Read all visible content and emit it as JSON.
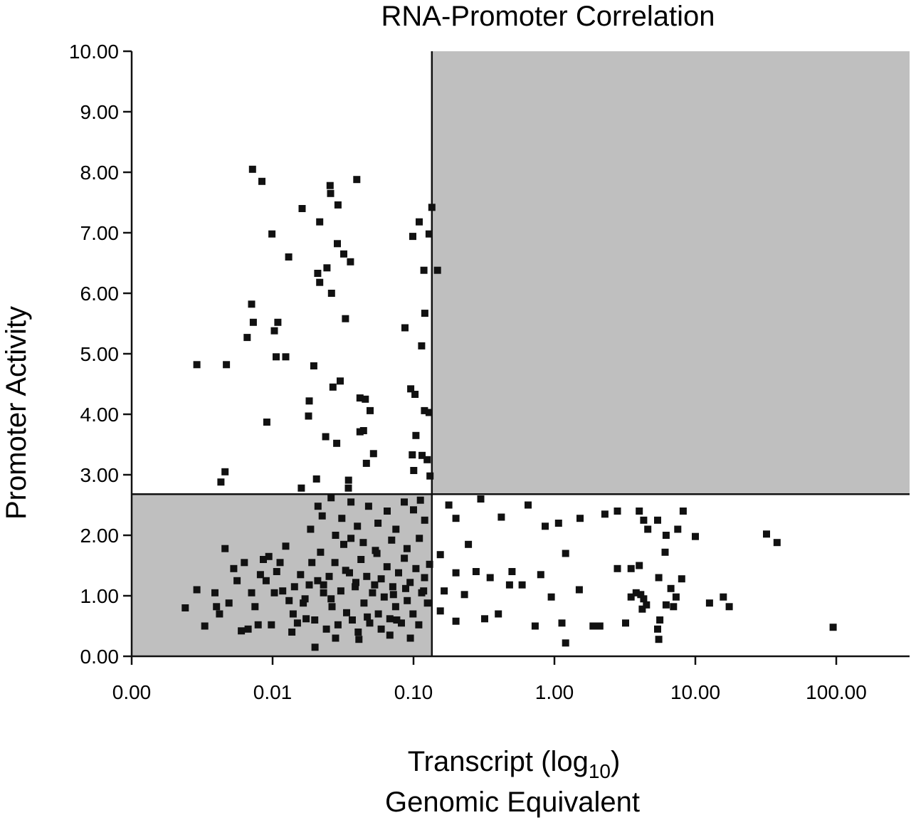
{
  "chart_data": {
    "type": "scatter",
    "title": "RNA-Promoter  Correlation",
    "xlabel": {
      "main": "Transcript (log",
      "subscript": "10",
      "close": ")",
      "line2": "Genomic Equivalent"
    },
    "ylabel": "Promoter Activity",
    "x_scale": "log10",
    "xlim": [
      0.001,
      300
    ],
    "ylim": [
      0,
      10
    ],
    "x_ticks": [
      {
        "value": 0.001,
        "label": "0.00"
      },
      {
        "value": 0.01,
        "label": "0.01"
      },
      {
        "value": 0.1,
        "label": "0.10"
      },
      {
        "value": 1,
        "label": "1.00"
      },
      {
        "value": 10,
        "label": "10.00"
      },
      {
        "value": 100,
        "label": "100.00"
      }
    ],
    "y_ticks": [
      {
        "value": 0,
        "label": "0.00"
      },
      {
        "value": 1,
        "label": "1.00"
      },
      {
        "value": 2,
        "label": "2.00"
      },
      {
        "value": 3,
        "label": "3.00"
      },
      {
        "value": 4,
        "label": "4.00"
      },
      {
        "value": 5,
        "label": "5.00"
      },
      {
        "value": 6,
        "label": "6.00"
      },
      {
        "value": 7,
        "label": "7.00"
      },
      {
        "value": 8,
        "label": "8.00"
      },
      {
        "value": 9,
        "label": "9.00"
      },
      {
        "value": 10,
        "label": "10.00"
      }
    ],
    "threshold_x": 0.135,
    "threshold_y": 2.68,
    "shaded_quadrants": [
      "low-x-low-y",
      "high-x-high-y"
    ],
    "grid": false,
    "colors": {
      "points": "#111111",
      "shade": "#bfbfbf",
      "axis": "#111111"
    },
    "points": [
      [
        0.0072,
        8.05
      ],
      [
        0.0084,
        7.85
      ],
      [
        0.0099,
        6.98
      ],
      [
        0.013,
        6.6
      ],
      [
        0.0071,
        5.82
      ],
      [
        0.0073,
        5.52
      ],
      [
        0.0066,
        5.27
      ],
      [
        0.0109,
        5.52
      ],
      [
        0.0103,
        5.38
      ],
      [
        0.0124,
        4.95
      ],
      [
        0.0106,
        4.95
      ],
      [
        0.0029,
        4.82
      ],
      [
        0.0047,
        4.82
      ],
      [
        0.0091,
        3.87
      ],
      [
        0.0046,
        3.05
      ],
      [
        0.0043,
        2.88
      ],
      [
        0.0162,
        7.4
      ],
      [
        0.0216,
        7.18
      ],
      [
        0.0256,
        7.78
      ],
      [
        0.0258,
        7.65
      ],
      [
        0.0291,
        7.46
      ],
      [
        0.0396,
        7.88
      ],
      [
        0.0288,
        6.82
      ],
      [
        0.032,
        6.65
      ],
      [
        0.0357,
        6.52
      ],
      [
        0.0209,
        6.33
      ],
      [
        0.0243,
        6.42
      ],
      [
        0.0216,
        6.18
      ],
      [
        0.0262,
        6.0
      ],
      [
        0.0329,
        5.58
      ],
      [
        0.0196,
        4.8
      ],
      [
        0.0302,
        4.55
      ],
      [
        0.0268,
        4.45
      ],
      [
        0.0182,
        4.22
      ],
      [
        0.018,
        3.97
      ],
      [
        0.0238,
        3.63
      ],
      [
        0.0285,
        3.52
      ],
      [
        0.0417,
        4.27
      ],
      [
        0.0455,
        4.25
      ],
      [
        0.0492,
        4.06
      ],
      [
        0.0417,
        3.71
      ],
      [
        0.0442,
        3.73
      ],
      [
        0.052,
        3.35
      ],
      [
        0.0463,
        3.19
      ],
      [
        0.0346,
        2.91
      ],
      [
        0.0205,
        2.93
      ],
      [
        0.0345,
        2.78
      ],
      [
        0.016,
        2.78
      ],
      [
        0.135,
        7.42
      ],
      [
        0.129,
        6.98
      ],
      [
        0.1097,
        7.18
      ],
      [
        0.0989,
        6.94
      ],
      [
        0.148,
        6.38
      ],
      [
        0.1185,
        6.38
      ],
      [
        0.1203,
        5.67
      ],
      [
        0.087,
        5.43
      ],
      [
        0.1142,
        5.13
      ],
      [
        0.0956,
        4.42
      ],
      [
        0.1025,
        4.33
      ],
      [
        0.1196,
        4.06
      ],
      [
        0.129,
        4.03
      ],
      [
        0.104,
        3.65
      ],
      [
        0.098,
        3.33
      ],
      [
        0.115,
        3.32
      ],
      [
        0.125,
        3.25
      ],
      [
        0.1003,
        3.07
      ],
      [
        0.131,
        2.98
      ],
      [
        0.0024,
        0.8
      ],
      [
        0.0029,
        1.1
      ],
      [
        0.0033,
        0.5
      ],
      [
        0.0039,
        1.05
      ],
      [
        0.004,
        0.82
      ],
      [
        0.0042,
        0.7
      ],
      [
        0.0046,
        1.78
      ],
      [
        0.0049,
        0.88
      ],
      [
        0.0053,
        1.45
      ],
      [
        0.0056,
        1.25
      ],
      [
        0.006,
        0.42
      ],
      [
        0.0063,
        1.55
      ],
      [
        0.0067,
        0.45
      ],
      [
        0.0071,
        1.05
      ],
      [
        0.0075,
        0.82
      ],
      [
        0.0079,
        0.52
      ],
      [
        0.0082,
        1.35
      ],
      [
        0.0086,
        1.6
      ],
      [
        0.009,
        1.25
      ],
      [
        0.0094,
        1.65
      ],
      [
        0.0098,
        0.52
      ],
      [
        0.0103,
        1.05
      ],
      [
        0.0107,
        1.4
      ],
      [
        0.0113,
        1.55
      ],
      [
        0.0118,
        1.08
      ],
      [
        0.0124,
        1.82
      ],
      [
        0.0131,
        0.92
      ],
      [
        0.0137,
        0.4
      ],
      [
        0.0143,
        1.15
      ],
      [
        0.015,
        0.55
      ],
      [
        0.0158,
        1.35
      ],
      [
        0.0165,
        0.88
      ],
      [
        0.0173,
        0.62
      ],
      [
        0.0182,
        1.18
      ],
      [
        0.019,
        1.55
      ],
      [
        0.0199,
        0.6
      ],
      [
        0.0209,
        1.25
      ],
      [
        0.0219,
        1.72
      ],
      [
        0.023,
        1.05
      ],
      [
        0.0241,
        0.45
      ],
      [
        0.0252,
        1.32
      ],
      [
        0.0264,
        0.82
      ],
      [
        0.0277,
        1.55
      ],
      [
        0.0291,
        0.52
      ],
      [
        0.0305,
        1.08
      ],
      [
        0.032,
        1.85
      ],
      [
        0.0335,
        0.72
      ],
      [
        0.0351,
        1.38
      ],
      [
        0.0368,
        0.6
      ],
      [
        0.0386,
        1.15
      ],
      [
        0.0405,
        0.4
      ],
      [
        0.0424,
        1.6
      ],
      [
        0.0445,
        0.88
      ],
      [
        0.0466,
        1.32
      ],
      [
        0.0489,
        0.55
      ],
      [
        0.0512,
        1.05
      ],
      [
        0.0537,
        1.75
      ],
      [
        0.0563,
        0.7
      ],
      [
        0.059,
        1.28
      ],
      [
        0.0619,
        0.98
      ],
      [
        0.0649,
        1.48
      ],
      [
        0.068,
        0.62
      ],
      [
        0.0713,
        1.15
      ],
      [
        0.0747,
        0.82
      ],
      [
        0.0783,
        1.38
      ],
      [
        0.0821,
        0.55
      ],
      [
        0.0861,
        1.62
      ],
      [
        0.0903,
        0.92
      ],
      [
        0.0946,
        1.22
      ],
      [
        0.0992,
        0.7
      ],
      [
        0.104,
        1.45
      ],
      [
        0.109,
        0.52
      ],
      [
        0.1143,
        1.05
      ],
      [
        0.1198,
        1.3
      ],
      [
        0.1256,
        0.88
      ],
      [
        0.13,
        1.52
      ],
      [
        0.0186,
        2.1
      ],
      [
        0.021,
        2.48
      ],
      [
        0.0225,
        2.32
      ],
      [
        0.026,
        2.62
      ],
      [
        0.028,
        2.0
      ],
      [
        0.031,
        2.28
      ],
      [
        0.036,
        2.55
      ],
      [
        0.04,
        2.15
      ],
      [
        0.048,
        2.48
      ],
      [
        0.056,
        2.2
      ],
      [
        0.065,
        2.4
      ],
      [
        0.075,
        2.1
      ],
      [
        0.086,
        2.55
      ],
      [
        0.1,
        2.42
      ],
      [
        0.112,
        2.58
      ],
      [
        0.12,
        2.25
      ],
      [
        0.036,
        1.95
      ],
      [
        0.044,
        1.88
      ],
      [
        0.055,
        1.7
      ],
      [
        0.07,
        1.92
      ],
      [
        0.09,
        1.78
      ],
      [
        0.11,
        1.95
      ],
      [
        0.028,
        0.3
      ],
      [
        0.041,
        0.28
      ],
      [
        0.02,
        0.15
      ],
      [
        0.068,
        0.35
      ],
      [
        0.095,
        0.3
      ],
      [
        0.014,
        0.7
      ],
      [
        0.017,
        0.95
      ],
      [
        0.026,
        0.95
      ],
      [
        0.033,
        1.42
      ],
      [
        0.047,
        0.65
      ],
      [
        0.059,
        0.45
      ],
      [
        0.076,
        0.6
      ],
      [
        0.088,
        1.12
      ],
      [
        0.118,
        1.08
      ],
      [
        0.023,
        1.18
      ],
      [
        0.039,
        1.22
      ],
      [
        0.053,
        1.18
      ],
      [
        0.072,
        1.02
      ],
      [
        0.178,
        2.5
      ],
      [
        0.2,
        2.28
      ],
      [
        0.245,
        1.85
      ],
      [
        0.3,
        2.6
      ],
      [
        0.42,
        2.3
      ],
      [
        0.65,
        2.5
      ],
      [
        0.86,
        2.15
      ],
      [
        1.07,
        2.2
      ],
      [
        1.52,
        2.28
      ],
      [
        2.28,
        2.35
      ],
      [
        0.155,
        1.68
      ],
      [
        0.2,
        1.38
      ],
      [
        0.278,
        1.4
      ],
      [
        0.35,
        1.3
      ],
      [
        0.5,
        1.4
      ],
      [
        0.8,
        1.35
      ],
      [
        1.2,
        1.7
      ],
      [
        0.165,
        1.08
      ],
      [
        0.23,
        1.02
      ],
      [
        0.48,
        1.18
      ],
      [
        0.59,
        1.18
      ],
      [
        0.95,
        0.98
      ],
      [
        1.5,
        1.1
      ],
      [
        0.155,
        0.75
      ],
      [
        0.2,
        0.58
      ],
      [
        0.32,
        0.62
      ],
      [
        0.4,
        0.7
      ],
      [
        0.73,
        0.5
      ],
      [
        1.13,
        0.55
      ],
      [
        1.88,
        0.5
      ],
      [
        2.8,
        2.4
      ],
      [
        4.0,
        2.4
      ],
      [
        4.6,
        2.1
      ],
      [
        5.4,
        2.25
      ],
      [
        6.2,
        2.0
      ],
      [
        7.5,
        2.1
      ],
      [
        8.2,
        2.4
      ],
      [
        10.0,
        1.98
      ],
      [
        4.3,
        2.25
      ],
      [
        3.5,
        1.45
      ],
      [
        4.0,
        1.5
      ],
      [
        2.8,
        1.45
      ],
      [
        3.8,
        1.05
      ],
      [
        4.1,
        1.02
      ],
      [
        4.3,
        0.95
      ],
      [
        4.5,
        0.85
      ],
      [
        3.5,
        0.98
      ],
      [
        5.5,
        1.3
      ],
      [
        6.7,
        1.12
      ],
      [
        7.3,
        0.98
      ],
      [
        8.0,
        1.28
      ],
      [
        6.1,
        1.72
      ],
      [
        6.2,
        0.85
      ],
      [
        5.6,
        0.6
      ],
      [
        5.4,
        0.45
      ],
      [
        3.2,
        0.55
      ],
      [
        2.1,
        0.5
      ],
      [
        1.2,
        0.22
      ],
      [
        12.6,
        0.88
      ],
      [
        15.8,
        0.98
      ],
      [
        17.4,
        0.82
      ],
      [
        32.0,
        2.02
      ],
      [
        38.0,
        1.88
      ],
      [
        95.0,
        0.48
      ],
      [
        5.5,
        0.28
      ],
      [
        4.2,
        0.78
      ],
      [
        7.0,
        0.82
      ]
    ]
  }
}
